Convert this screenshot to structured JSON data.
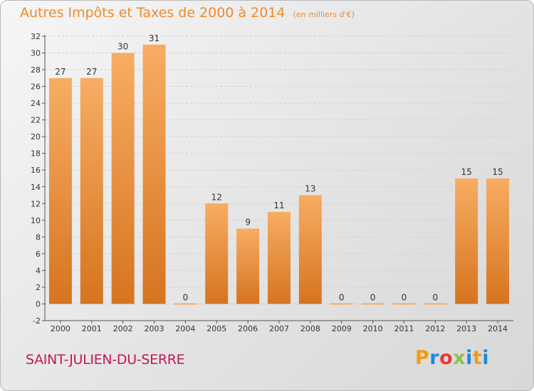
{
  "header": {
    "title": "Autres Impôts et Taxes de 2000 à 2014",
    "unit": "(en milliers d'€)"
  },
  "footer": {
    "commune": "SAINT-JULIEN-DU-SERRE",
    "brand_letters": [
      "P",
      "r",
      "o",
      "x",
      "i",
      "t",
      "i"
    ],
    "brand_colors": [
      "#f39c12",
      "#1e88e5",
      "#e53935",
      "#8bc34a",
      "#1e88e5",
      "#f39c12",
      "#1e88e5"
    ]
  },
  "colors": {
    "bar_light": "#f7ad63",
    "bar_dark": "#d6741f",
    "grid": "#cfcfcf",
    "axis": "#555555",
    "title": "#ee8a2d",
    "commune": "#c2185b"
  },
  "chart_data": {
    "type": "bar",
    "title": "Autres Impôts et Taxes de 2000 à 2014",
    "categories": [
      "2000",
      "2001",
      "2002",
      "2003",
      "2004",
      "2005",
      "2006",
      "2007",
      "2008",
      "2009",
      "2010",
      "2011",
      "2012",
      "2013",
      "2014"
    ],
    "values": [
      27,
      27,
      30,
      31,
      0,
      12,
      9,
      11,
      13,
      0,
      0,
      0,
      0,
      15,
      15
    ],
    "ylim": [
      -2,
      32
    ],
    "yticks": [
      -2,
      0,
      2,
      4,
      6,
      8,
      10,
      12,
      14,
      16,
      18,
      20,
      22,
      24,
      26,
      28,
      30,
      32
    ],
    "grid": true
  }
}
